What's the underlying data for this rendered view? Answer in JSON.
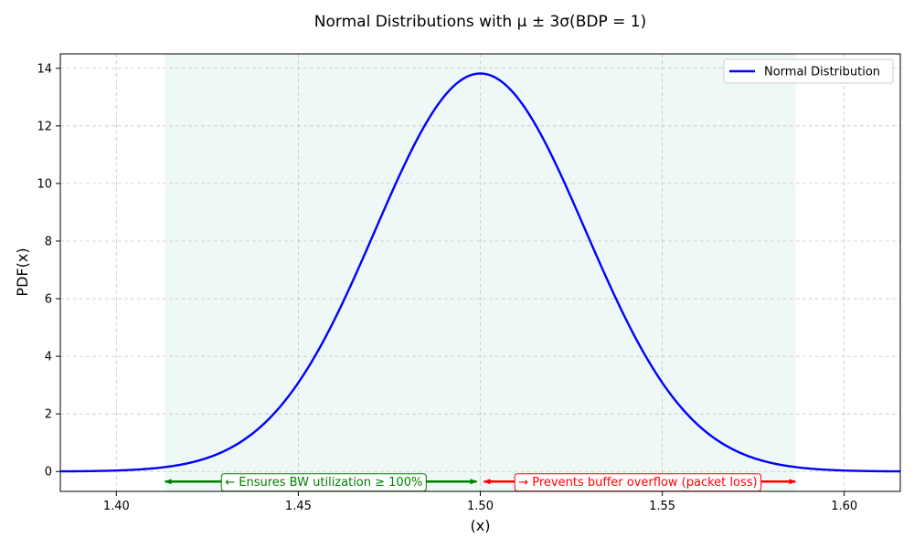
{
  "chart_data": {
    "type": "line",
    "title": "Normal Distributions with μ ± 3σ(BDP = 1)",
    "xlabel": "(x)",
    "ylabel": "PDF(x)",
    "xlim": [
      1.3846,
      1.6154
    ],
    "ylim": [
      -0.69,
      14.5
    ],
    "xticks": [
      1.4,
      1.45,
      1.5,
      1.55,
      1.6
    ],
    "xtick_labels": [
      "1.40",
      "1.45",
      "1.50",
      "1.55",
      "1.60"
    ],
    "yticks": [
      0,
      2,
      4,
      6,
      8,
      10,
      12,
      14
    ],
    "ytick_labels": [
      "0",
      "2",
      "4",
      "6",
      "8",
      "10",
      "12",
      "14"
    ],
    "grid": true,
    "legend": {
      "position": "upper-right"
    },
    "series": [
      {
        "name": "Normal Distribution",
        "distribution": "normal",
        "mean": 1.5,
        "std": 0.02887,
        "color": "#0000ff"
      }
    ],
    "shaded_region": {
      "x_start": 1.4134,
      "x_end": 1.5866,
      "color": "#e0f2f1"
    },
    "annotations": [
      {
        "text": "← Ensures BW utilization ≥ 100%",
        "arrow_from": 1.5,
        "arrow_to": 1.4134,
        "y": -0.35,
        "label_x": 1.457,
        "color": "#008000"
      },
      {
        "text": "→ Prevents buffer overflow (packet loss)",
        "arrow_from": 1.5,
        "arrow_to": 1.5866,
        "y": -0.35,
        "label_x": 1.5433,
        "color": "#ff0000"
      }
    ]
  }
}
